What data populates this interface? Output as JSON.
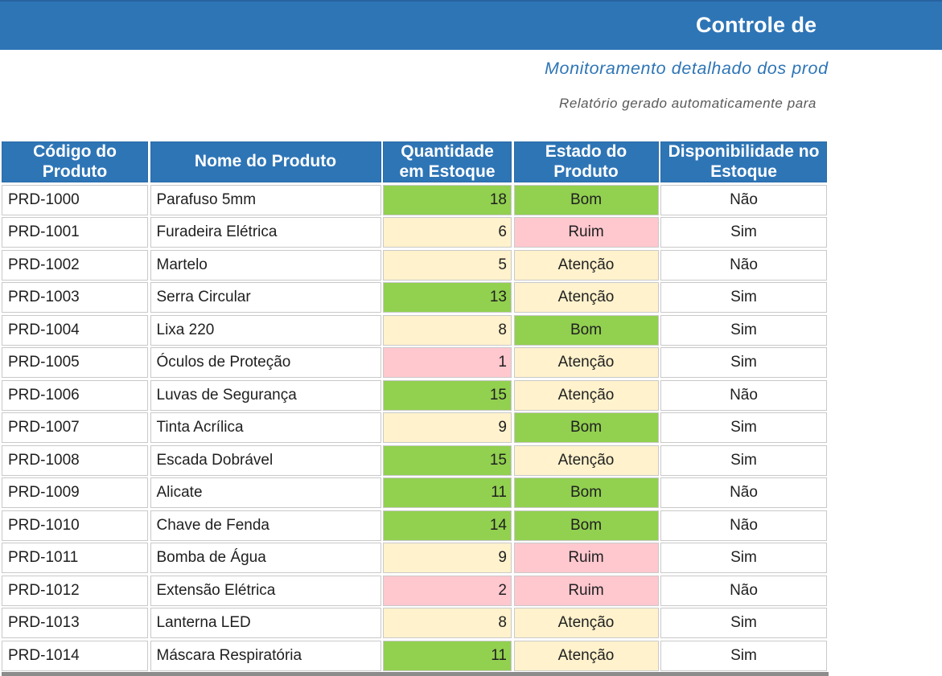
{
  "masthead": {
    "title": "Controle de",
    "subtitle": "Monitoramento detalhado dos prod",
    "note": "Relatório gerado automaticamente para"
  },
  "colors": {
    "header_blue": "#2E75B6",
    "green": "#92D050",
    "yellow": "#FFF2CC",
    "pink": "#FFC7CE",
    "title_text": "#FFFFFF",
    "subtitle_text": "#2E75B6",
    "note_text": "#595959",
    "cell_border": "#C9C9C9",
    "body_text": "#1F1F1F"
  },
  "table": {
    "columns": [
      {
        "key": "codigo",
        "label": "Código do Produto",
        "lines": [
          "Código do",
          "Produto"
        ]
      },
      {
        "key": "nome",
        "label": "Nome do Produto",
        "lines": [
          "Nome do Produto"
        ]
      },
      {
        "key": "quantidade",
        "label": "Quantidade em Estoque",
        "lines": [
          "Quantidade",
          "em Estoque"
        ]
      },
      {
        "key": "estado",
        "label": "Estado do Produto",
        "lines": [
          "Estado do",
          "Produto"
        ]
      },
      {
        "key": "disponibilidade",
        "label": "Disponibilidade no Estoque",
        "lines": [
          "Disponibilidade no",
          "Estoque"
        ]
      }
    ],
    "rows": [
      {
        "code": "PRD-1000",
        "name": "Parafuso 5mm",
        "qty": "18",
        "qty_color": "green",
        "status": "Bom",
        "status_color": "green",
        "available": "Não"
      },
      {
        "code": "PRD-1001",
        "name": "Furadeira Elétrica",
        "qty": "6",
        "qty_color": "yellow",
        "status": "Ruim",
        "status_color": "pink",
        "available": "Sim"
      },
      {
        "code": "PRD-1002",
        "name": "Martelo",
        "qty": "5",
        "qty_color": "yellow",
        "status": "Atenção",
        "status_color": "yellow",
        "available": "Não"
      },
      {
        "code": "PRD-1003",
        "name": "Serra Circular",
        "qty": "13",
        "qty_color": "green",
        "status": "Atenção",
        "status_color": "yellow",
        "available": "Sim"
      },
      {
        "code": "PRD-1004",
        "name": "Lixa 220",
        "qty": "8",
        "qty_color": "yellow",
        "status": "Bom",
        "status_color": "green",
        "available": "Sim"
      },
      {
        "code": "PRD-1005",
        "name": "Óculos de Proteção",
        "qty": "1",
        "qty_color": "pink",
        "status": "Atenção",
        "status_color": "yellow",
        "available": "Sim"
      },
      {
        "code": "PRD-1006",
        "name": "Luvas de Segurança",
        "qty": "15",
        "qty_color": "green",
        "status": "Atenção",
        "status_color": "yellow",
        "available": "Não"
      },
      {
        "code": "PRD-1007",
        "name": "Tinta Acrílica",
        "qty": "9",
        "qty_color": "yellow",
        "status": "Bom",
        "status_color": "green",
        "available": "Sim"
      },
      {
        "code": "PRD-1008",
        "name": "Escada Dobrável",
        "qty": "15",
        "qty_color": "green",
        "status": "Atenção",
        "status_color": "yellow",
        "available": "Sim"
      },
      {
        "code": "PRD-1009",
        "name": "Alicate",
        "qty": "11",
        "qty_color": "green",
        "status": "Bom",
        "status_color": "green",
        "available": "Não"
      },
      {
        "code": "PRD-1010",
        "name": "Chave de Fenda",
        "qty": "14",
        "qty_color": "green",
        "status": "Bom",
        "status_color": "green",
        "available": "Não"
      },
      {
        "code": "PRD-1011",
        "name": "Bomba de Água",
        "qty": "9",
        "qty_color": "yellow",
        "status": "Ruim",
        "status_color": "pink",
        "available": "Sim"
      },
      {
        "code": "PRD-1012",
        "name": "Extensão Elétrica",
        "qty": "2",
        "qty_color": "pink",
        "status": "Ruim",
        "status_color": "pink",
        "available": "Não"
      },
      {
        "code": "PRD-1013",
        "name": "Lanterna LED",
        "qty": "8",
        "qty_color": "yellow",
        "status": "Atenção",
        "status_color": "yellow",
        "available": "Sim"
      },
      {
        "code": "PRD-1014",
        "name": "Máscara Respiratória",
        "qty": "11",
        "qty_color": "green",
        "status": "Atenção",
        "status_color": "yellow",
        "available": "Sim"
      }
    ]
  }
}
